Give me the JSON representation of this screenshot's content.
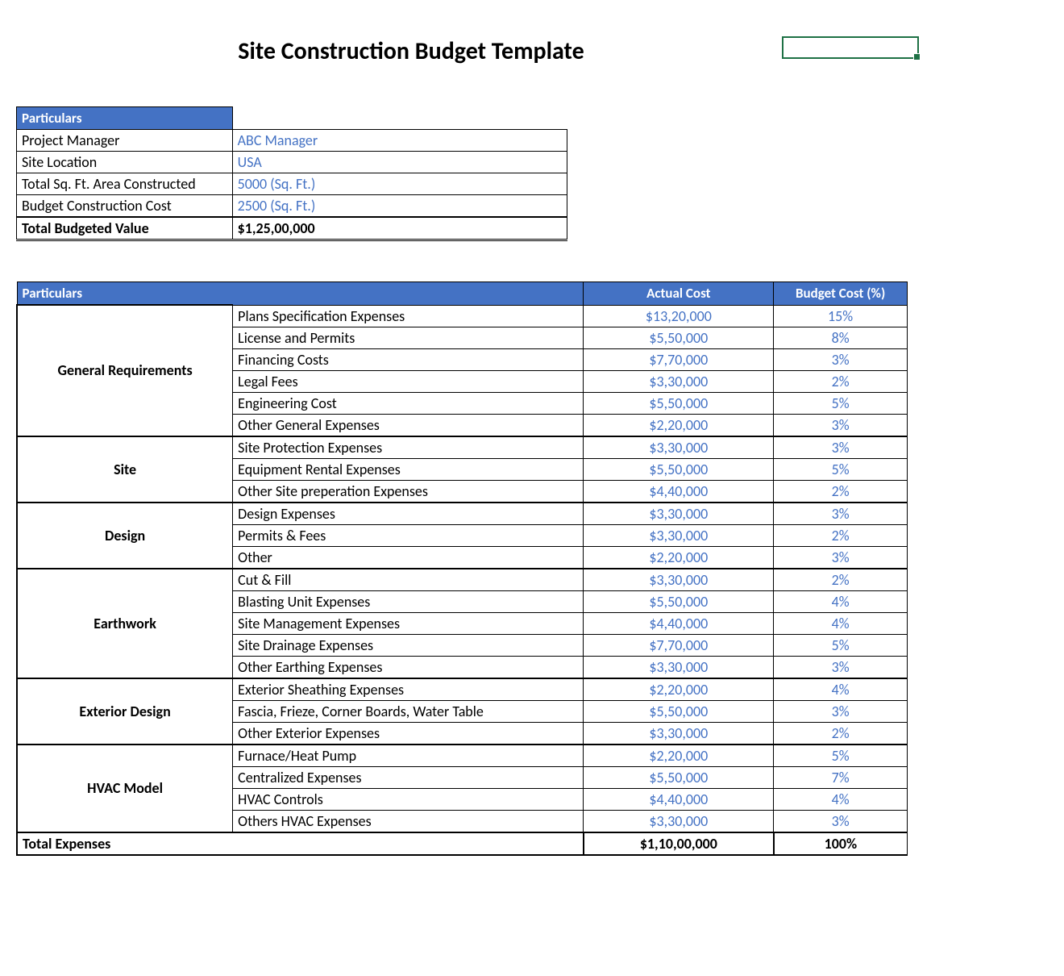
{
  "title": "Site Construction Budget Template",
  "colors": {
    "header_bg": "#4472c4",
    "header_text": "#ffffff",
    "value_text": "#4472c4",
    "border": "#000000",
    "selection": "#1e7145"
  },
  "info": {
    "header": "Particulars",
    "rows": [
      {
        "label": "Project Manager",
        "value": "ABC Manager"
      },
      {
        "label": "Site Location",
        "value": "USA"
      },
      {
        "label": "Total Sq. Ft. Area Constructed",
        "value": "5000 (Sq. Ft.)"
      },
      {
        "label": "Budget Construction Cost",
        "value": "2500 (Sq. Ft.)"
      }
    ],
    "total": {
      "label": "Total Budgeted Value",
      "value": "$1,25,00,000"
    }
  },
  "budget": {
    "headers": {
      "particulars": "Particulars",
      "actual_cost": "Actual Cost",
      "budget_pct": "Budget Cost (%)"
    },
    "sections": [
      {
        "category": "General Requirements",
        "items": [
          {
            "name": "Plans Specification Expenses",
            "cost": "$13,20,000",
            "pct": "15%"
          },
          {
            "name": "License and Permits",
            "cost": "$5,50,000",
            "pct": "8%"
          },
          {
            "name": "Financing Costs",
            "cost": "$7,70,000",
            "pct": "3%"
          },
          {
            "name": "Legal Fees",
            "cost": "$3,30,000",
            "pct": "2%"
          },
          {
            "name": "Engineering Cost",
            "cost": "$5,50,000",
            "pct": "5%"
          },
          {
            "name": "Other General Expenses",
            "cost": "$2,20,000",
            "pct": "3%"
          }
        ]
      },
      {
        "category": "Site",
        "items": [
          {
            "name": "Site Protection Expenses",
            "cost": "$3,30,000",
            "pct": "3%"
          },
          {
            "name": "Equipment Rental Expenses",
            "cost": "$5,50,000",
            "pct": "5%"
          },
          {
            "name": "Other Site preperation Expenses",
            "cost": "$4,40,000",
            "pct": "2%"
          }
        ]
      },
      {
        "category": "Design",
        "items": [
          {
            "name": "Design Expenses",
            "cost": "$3,30,000",
            "pct": "3%"
          },
          {
            "name": "Permits & Fees",
            "cost": "$3,30,000",
            "pct": "2%"
          },
          {
            "name": "Other",
            "cost": "$2,20,000",
            "pct": "3%"
          }
        ]
      },
      {
        "category": "Earthwork",
        "items": [
          {
            "name": "Cut & Fill",
            "cost": "$3,30,000",
            "pct": "2%"
          },
          {
            "name": "Blasting Unit Expenses",
            "cost": "$5,50,000",
            "pct": "4%"
          },
          {
            "name": "Site Management Expenses",
            "cost": "$4,40,000",
            "pct": "4%"
          },
          {
            "name": "Site Drainage Expenses",
            "cost": "$7,70,000",
            "pct": "5%"
          },
          {
            "name": "Other Earthing Expenses",
            "cost": "$3,30,000",
            "pct": "3%"
          }
        ]
      },
      {
        "category": "Exterior Design",
        "items": [
          {
            "name": "Exterior Sheathing Expenses",
            "cost": "$2,20,000",
            "pct": "4%"
          },
          {
            "name": "Fascia, Frieze, Corner Boards, Water Table",
            "cost": "$5,50,000",
            "pct": "3%"
          },
          {
            "name": "Other Exterior Expenses",
            "cost": "$3,30,000",
            "pct": "2%"
          }
        ]
      },
      {
        "category": "HVAC Model",
        "items": [
          {
            "name": "Furnace/Heat Pump",
            "cost": "$2,20,000",
            "pct": "5%"
          },
          {
            "name": "Centralized Expenses",
            "cost": "$5,50,000",
            "pct": "7%"
          },
          {
            "name": "HVAC Controls",
            "cost": "$4,40,000",
            "pct": "4%"
          },
          {
            "name": "Others HVAC Expenses",
            "cost": "$3,30,000",
            "pct": "3%"
          }
        ]
      }
    ],
    "total": {
      "label": "Total Expenses",
      "cost": "$1,10,00,000",
      "pct": "100%"
    }
  }
}
